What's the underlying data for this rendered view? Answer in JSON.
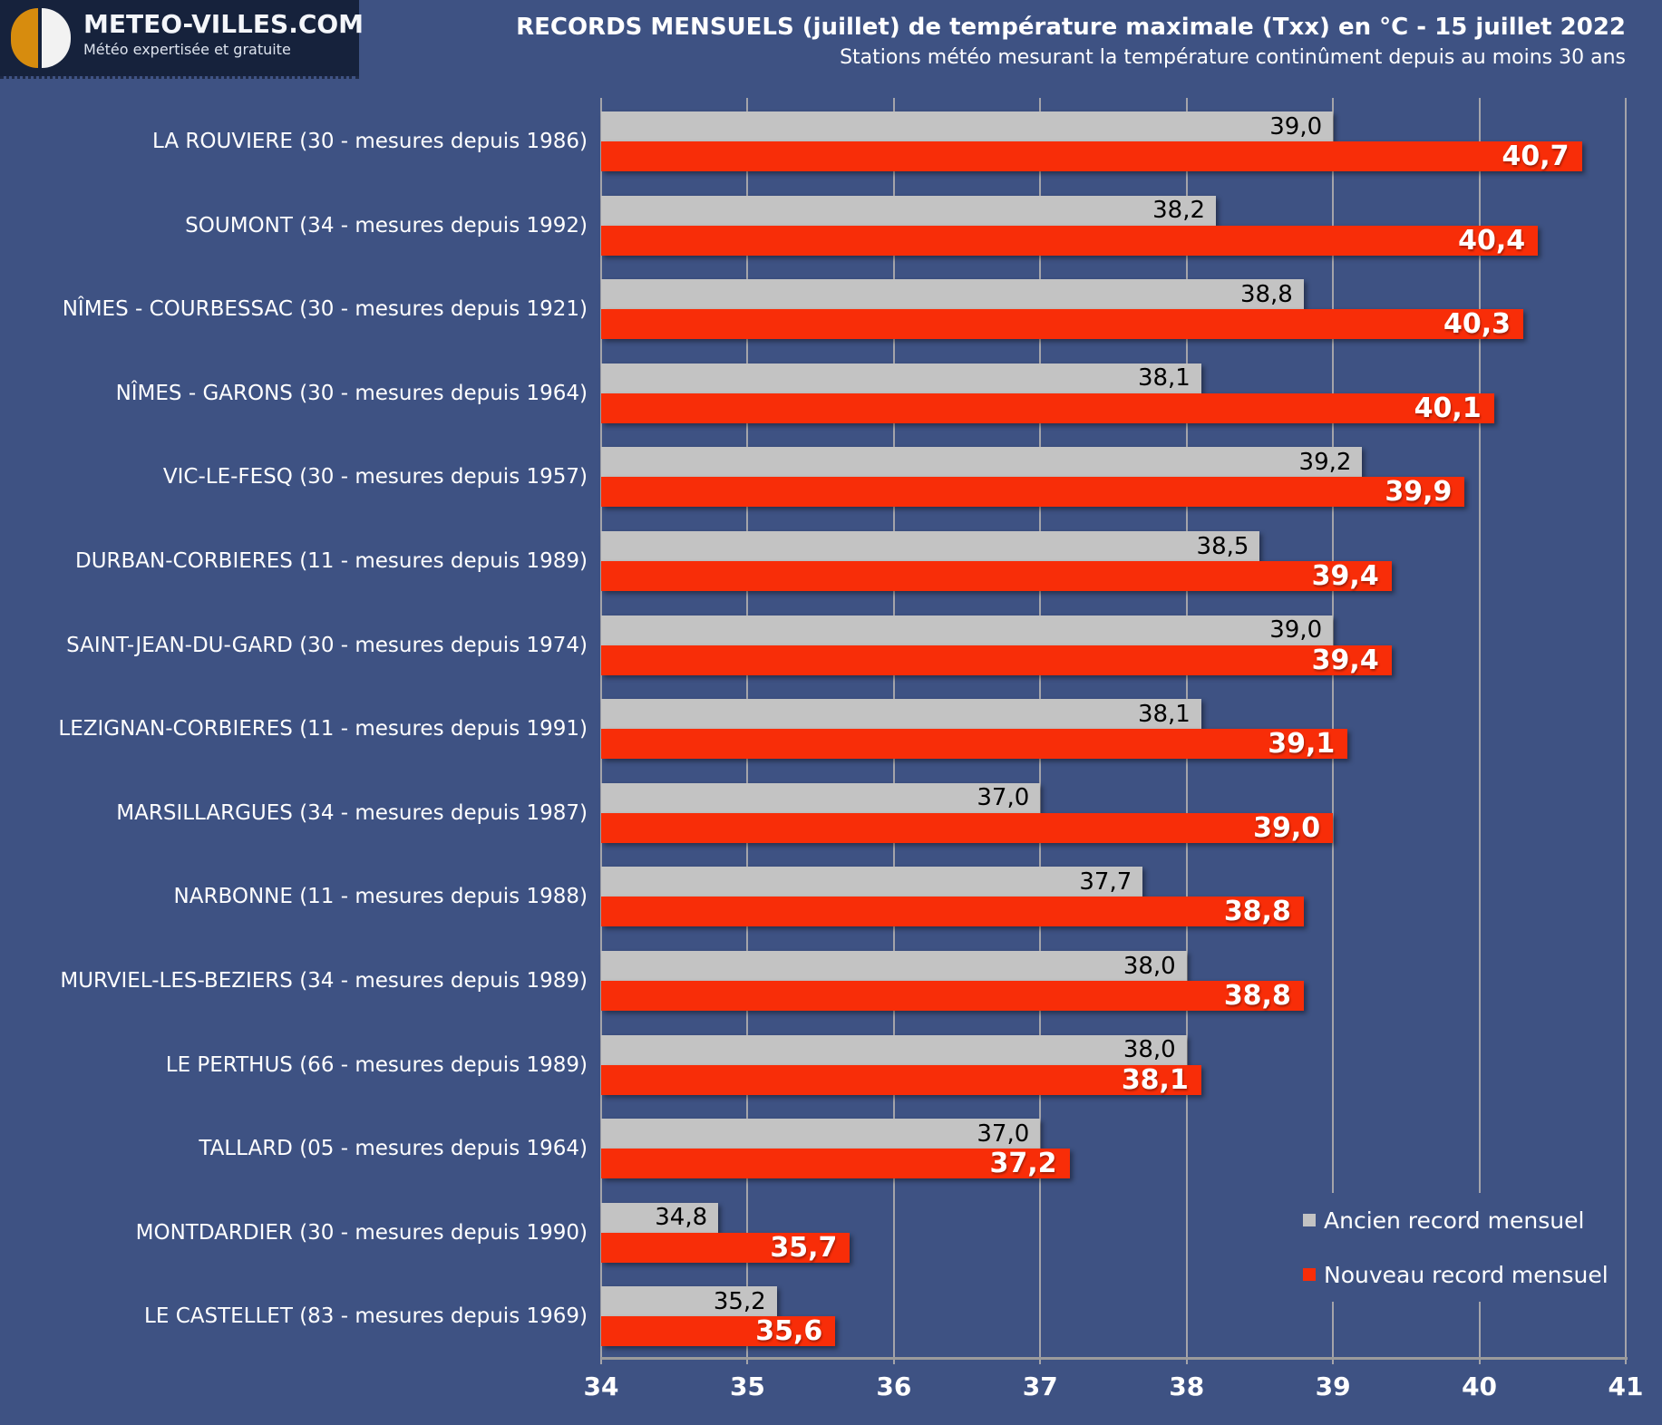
{
  "page": {
    "background": "#3E5283"
  },
  "header": {
    "logo": {
      "title": "METEO-VILLES.COM",
      "subtitle": "Météo expertisée et gratuite",
      "box_color": "#16223C",
      "circle_left_color": "#D78C0E",
      "circle_right_color": "#F2F2F2"
    },
    "title": "RECORDS MENSUELS (juillet) de température maximale (Txx) en °C - 15 juillet 2022",
    "subtitle": "Stations météo mesurant la température continûment depuis au moins 30 ans"
  },
  "chart_data": {
    "type": "bar",
    "orientation": "horizontal",
    "title": "RECORDS MENSUELS (juillet) de température maximale (Txx) en °C - 15 juillet 2022",
    "subtitle": "Stations météo mesurant la température continûment depuis au moins 30 ans",
    "xlabel": "",
    "ylabel": "",
    "xlim": [
      34,
      41
    ],
    "x_ticks": [
      34,
      35,
      36,
      37,
      38,
      39,
      40,
      41
    ],
    "grid": true,
    "decimal_separator": ",",
    "legend_position": "bottom-right",
    "categories": [
      "LA ROUVIERE (30 - mesures depuis 1986)",
      "SOUMONT (34 - mesures depuis 1992)",
      "NÎMES - COURBESSAC (30 - mesures depuis 1921)",
      "NÎMES - GARONS (30 - mesures depuis 1964)",
      "VIC-LE-FESQ (30 - mesures depuis 1957)",
      "DURBAN-CORBIERES (11 - mesures depuis 1989)",
      "SAINT-JEAN-DU-GARD (30 - mesures depuis 1974)",
      "LEZIGNAN-CORBIERES (11 - mesures depuis 1991)",
      "MARSILLARGUES (34 - mesures depuis 1987)",
      "NARBONNE (11 - mesures depuis 1988)",
      "MURVIEL-LES-BEZIERS (34 - mesures depuis 1989)",
      "LE PERTHUS (66 - mesures depuis 1989)",
      "TALLARD (05 - mesures depuis 1964)",
      "MONTDARDIER (30 - mesures depuis 1990)",
      "LE CASTELLET (83 - mesures depuis 1969)"
    ],
    "series": [
      {
        "name": "Ancien record mensuel",
        "color": "#C3C3C3",
        "label_color": "#000000",
        "values": [
          39.0,
          38.2,
          38.8,
          38.1,
          39.2,
          38.5,
          39.0,
          38.1,
          37.0,
          37.7,
          38.0,
          38.0,
          37.0,
          34.8,
          35.2
        ]
      },
      {
        "name": "Nouveau record mensuel",
        "color": "#F82D08",
        "label_color": "#FFFFFF",
        "values": [
          40.7,
          40.4,
          40.3,
          40.1,
          39.9,
          39.4,
          39.4,
          39.1,
          39.0,
          38.8,
          38.8,
          38.1,
          37.2,
          35.7,
          35.6
        ]
      }
    ]
  },
  "legend": {
    "items": [
      {
        "label": "Ancien record mensuel",
        "color": "#C3C3C3"
      },
      {
        "label": "Nouveau record mensuel",
        "color": "#F82D08"
      }
    ]
  }
}
